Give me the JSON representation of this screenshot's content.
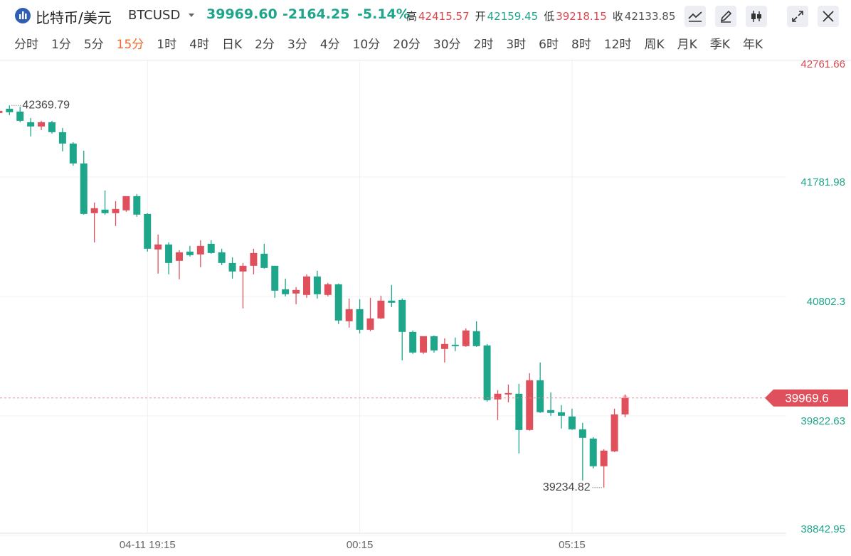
{
  "header": {
    "name": "比特币/美元",
    "symbol": "BTCUSD",
    "price": "39969.60",
    "change": "-2164.25",
    "change_pct": "-5.14%",
    "stats": [
      {
        "label": "高",
        "value": "42415.57"
      },
      {
        "label": "开",
        "value": "42159.45"
      },
      {
        "label": "低",
        "value": "39218.15"
      },
      {
        "label": "收",
        "value": "42133.85"
      }
    ]
  },
  "intervals": [
    "分时",
    "1分",
    "5分",
    "15分",
    "1时",
    "4时",
    "日K",
    "2分",
    "3分",
    "4分",
    "10分",
    "20分",
    "30分",
    "2时",
    "3时",
    "6时",
    "8时",
    "12时",
    "周K",
    "月K",
    "季K",
    "年K"
  ],
  "active_interval": 3,
  "chart_data": {
    "type": "candlestick",
    "up_color": "#e0505c",
    "down_color": "#1ea68b",
    "grid": true,
    "categories": [
      null,
      null,
      null,
      null,
      null,
      null,
      null,
      null,
      null,
      null,
      null,
      null,
      null,
      null,
      "04-11 19:15",
      null,
      null,
      null,
      null,
      null,
      null,
      null,
      null,
      null,
      null,
      null,
      null,
      null,
      null,
      null,
      null,
      null,
      null,
      null,
      "00:15",
      null,
      null,
      null,
      null,
      null,
      null,
      null,
      null,
      null,
      null,
      null,
      null,
      null,
      null,
      null,
      null,
      null,
      null,
      null,
      "05:15",
      null,
      null,
      null,
      null,
      null
    ],
    "open": [
      42307.4,
      42342.4,
      42319.1,
      42231.6,
      42196.6,
      42231.6,
      42150,
      42056.7,
      41893.5,
      41485.4,
      41514.6,
      41485.4,
      41508.7,
      41625.3,
      41479.6,
      41188.1,
      41228.9,
      41094.8,
      41170.6,
      41147.3,
      41234.7,
      41164.8,
      41077.3,
      41007.3,
      41054,
      41153.1,
      41054,
      40861.6,
      40826.6,
      40815,
      40966.5,
      40815,
      40902.4,
      40599.2,
      40698.4,
      40529.3,
      40622.6,
      40768.3,
      40774.1,
      40511.8,
      40342.7,
      40476.8,
      40371.9,
      40406.9,
      40395.2,
      40517.6,
      40401,
      39957.9,
      39998.8,
      40004.6,
      39707.2,
      40115.4,
      39870.5,
      39853,
      39818,
      39713.1,
      39637.3,
      39409.9,
      39532.3,
      39835.5
    ],
    "high": [
      42336.6,
      42369.79,
      42359.9,
      42266.6,
      42243.3,
      42243.3,
      42185,
      42068.4,
      41998.4,
      41572.9,
      41672,
      41584.5,
      41625.3,
      41642.8,
      41485.4,
      41310.5,
      41246.4,
      41182.2,
      41217.2,
      41263.9,
      41263.9,
      41193.9,
      41123.9,
      41077.3,
      41193.9,
      41234.7,
      41054,
      40949,
      40879.1,
      40984,
      41013.2,
      40914.1,
      40908.2,
      40785.8,
      40780,
      40791.6,
      40809.1,
      40896.6,
      40785.8,
      40523.5,
      40476.8,
      40482.6,
      40459.3,
      40465.2,
      40540.9,
      40599.2,
      40412.7,
      40033.7,
      40080.4,
      40086.2,
      40173.6,
      40261.1,
      40016.2,
      39911.3,
      39882.1,
      39765.6,
      39648.9,
      39549.8,
      39882.1,
      39998.8
    ],
    "low": [
      42295.8,
      42289.9,
      42231.6,
      42115,
      42167.5,
      42138.4,
      41992.6,
      41876,
      41473.7,
      41246.4,
      41473.7,
      41380.5,
      41497.1,
      41456.3,
      41170.6,
      40989.9,
      40984,
      40943.2,
      41129.8,
      41042.3,
      41153.1,
      41059.8,
      40949,
      40704.2,
      40984,
      41030.7,
      40791.6,
      40803.3,
      40739.2,
      40791.6,
      40785.8,
      40803.3,
      40575.9,
      40546.8,
      40500.1,
      40517.6,
      40616.7,
      40715.8,
      40278.6,
      40331.1,
      40331.1,
      40342.7,
      40261.1,
      40354.4,
      40389.4,
      40389.4,
      39940.4,
      39788.9,
      39934.6,
      39514.9,
      39701.4,
      39847.2,
      39823.8,
      39718.9,
      39707.2,
      39293.3,
      39392.4,
      39234.82,
      39526.5,
      39812.2
    ],
    "close": [
      42324.9,
      42313.3,
      42243.3,
      42196.6,
      42231.6,
      42150,
      42056.7,
      41893.5,
      41479.6,
      41526.2,
      41485.4,
      41520.4,
      41625.3,
      41473.7,
      41193.9,
      41228.9,
      41077.3,
      41164.8,
      41141.4,
      41217.2,
      41158.9,
      41077.3,
      41007.3,
      41054,
      41158.9,
      41036.5,
      40849.9,
      40820.8,
      40855.8,
      40966.5,
      40820.8,
      40902.4,
      40605.1,
      40698.4,
      40529.3,
      40622.6,
      40768.3,
      40750.8,
      40511.8,
      40342.7,
      40476.8,
      40360.2,
      40412.7,
      40395.2,
      40523.5,
      40395.2,
      39952.1,
      40004.6,
      40010.4,
      39707.2,
      40115.4,
      39853,
      39847.2,
      39823.8,
      39713.1,
      39643.1,
      39409.9,
      39538.2,
      39835.5,
      39969.6
    ],
    "ylim": [
      38842.95,
      42761.66
    ],
    "yticks": [
      42761.66,
      41781.98,
      40802.3,
      39822.63,
      38842.95
    ]
  }
}
